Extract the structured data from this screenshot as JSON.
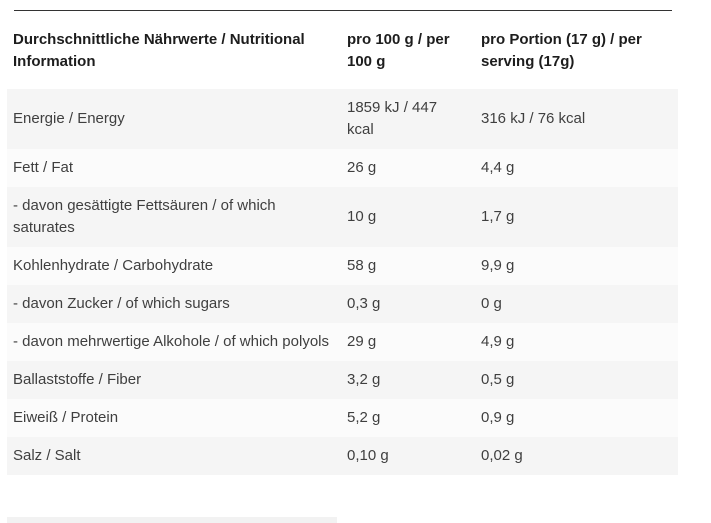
{
  "colors": {
    "top_rule": "#333333",
    "row_shaded": "#f5f5f5",
    "row_light": "#fbfbfb",
    "header_text": "#1d1d1d",
    "body_text": "#3f3f3f",
    "bottom_partial_element": "#f2f2f2"
  },
  "table": {
    "header": {
      "col1": "Durchschnittliche Nährwerte / Nutritional Information",
      "col2": "pro 100 g / per 100 g",
      "col3": "pro Portion (17 g) / per serving (17g)"
    },
    "rows": [
      {
        "label": "Energie / Energy",
        "per_100g": "1859 kJ / 447 kcal",
        "per_serving": "316 kJ / 76 kcal"
      },
      {
        "label": "Fett / Fat",
        "per_100g": "26 g",
        "per_serving": "4,4 g"
      },
      {
        "label": "- davon gesättigte Fettsäuren / of which saturates",
        "per_100g": "10 g",
        "per_serving": "1,7 g"
      },
      {
        "label": "Kohlenhydrate / Carbohydrate",
        "per_100g": "58 g",
        "per_serving": "9,9 g"
      },
      {
        "label": "- davon Zucker / of which sugars",
        "per_100g": "0,3 g",
        "per_serving": "0 g"
      },
      {
        "label": "- davon mehrwertige Alkohole / of which polyols",
        "per_100g": "29 g",
        "per_serving": "4,9 g"
      },
      {
        "label": "Ballaststoffe / Fiber",
        "per_100g": "3,2 g",
        "per_serving": "0,5 g"
      },
      {
        "label": "Eiweiß / Protein",
        "per_100g": "5,2 g",
        "per_serving": "0,9 g"
      },
      {
        "label": "Salz / Salt",
        "per_100g": "0,10 g",
        "per_serving": "0,02 g"
      }
    ]
  }
}
